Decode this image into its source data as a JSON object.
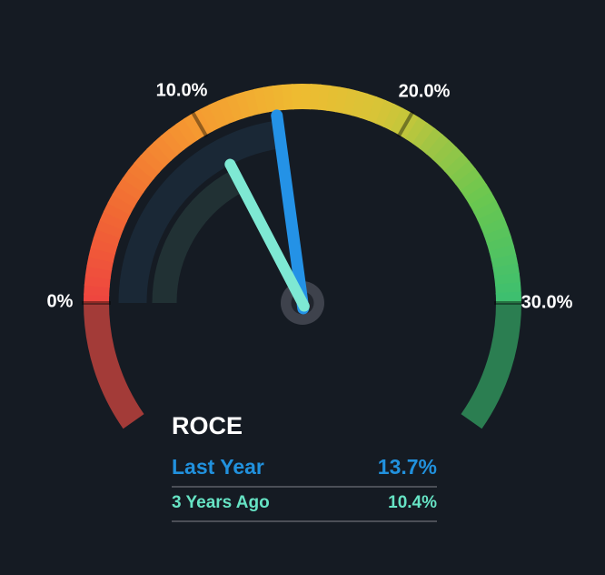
{
  "background_color": "#151b23",
  "chart_data": {
    "type": "gauge",
    "title": "ROCE",
    "unit": "%",
    "axis": {
      "min": 0,
      "max": 30,
      "start_angle_deg": 180,
      "end_angle_deg": 0,
      "overflow_extension_deg": 35
    },
    "ticks": [
      {
        "value": 0,
        "label": "0%"
      },
      {
        "value": 10,
        "label": "10.0%"
      },
      {
        "value": 20,
        "label": "20.0%"
      },
      {
        "value": 30,
        "label": "30.0%"
      }
    ],
    "series": [
      {
        "name": "Last Year",
        "value": 13.7,
        "display": "13.7%",
        "text_color": "#2191dd",
        "needle_color": "#2492e6",
        "track_color": "#1a2836"
      },
      {
        "name": "3 Years Ago",
        "value": 10.4,
        "display": "10.4%",
        "text_color": "#66e3c4",
        "needle_color": "#7ee8d3",
        "track_color": "#213134"
      }
    ],
    "band_gradient_stops": [
      {
        "t": 0.0,
        "color": "#ee4440"
      },
      {
        "t": 0.15,
        "color": "#f16a33"
      },
      {
        "t": 0.33,
        "color": "#f59a31"
      },
      {
        "t": 0.5,
        "color": "#eebc31"
      },
      {
        "t": 0.62,
        "color": "#d8c437"
      },
      {
        "t": 0.67,
        "color": "#c2c63b"
      },
      {
        "t": 0.72,
        "color": "#a0c544"
      },
      {
        "t": 0.83,
        "color": "#6cc74f"
      },
      {
        "t": 1.0,
        "color": "#3cbf70"
      }
    ],
    "band_muted_below_min_color": "#a33b38",
    "band_muted_above_max_color": "#2b7e51",
    "tick_mark_color": "rgba(0,0,0,0.4)",
    "hub_outer_color": "#3e424c",
    "hub_inner_color": "#21252d",
    "tick_label_color": "#ffffff",
    "title_color": "#ffffff"
  },
  "legend": {
    "divider_color": "#4b4f57"
  }
}
